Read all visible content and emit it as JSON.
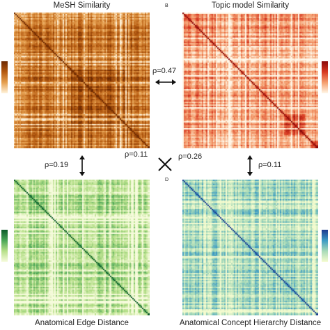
{
  "panels": [
    {
      "id": "A",
      "letter": "",
      "title": "MeSH Similarity",
      "colormap": "orange",
      "colors": [
        "#fff3dc",
        "#e6a050",
        "#b55a10",
        "#6e2a02"
      ]
    },
    {
      "id": "B",
      "letter": "B",
      "title": "Topic model Similarity",
      "colormap": "red",
      "colors": [
        "#fff7e8",
        "#f5a070",
        "#d83a22",
        "#8a0a0a"
      ]
    },
    {
      "id": "C",
      "letter": "",
      "title": "Anatomical Edge Distance",
      "colormap": "green",
      "colors": [
        "#f6fbdc",
        "#b7e08a",
        "#4aa657",
        "#0b5a2a"
      ]
    },
    {
      "id": "D",
      "letter": "D",
      "title": "Anatomical Concept Hierarchy Distance",
      "colormap": "blue",
      "colors": [
        "#f4fbcf",
        "#a9dbb8",
        "#3c9bc4",
        "#1a3a8f"
      ]
    }
  ],
  "correlations": {
    "ab": "ρ=0.47",
    "ac": "ρ=0.19",
    "bd": "ρ=0.11",
    "ad": "ρ=0.11",
    "bc": "ρ=0.26"
  }
}
